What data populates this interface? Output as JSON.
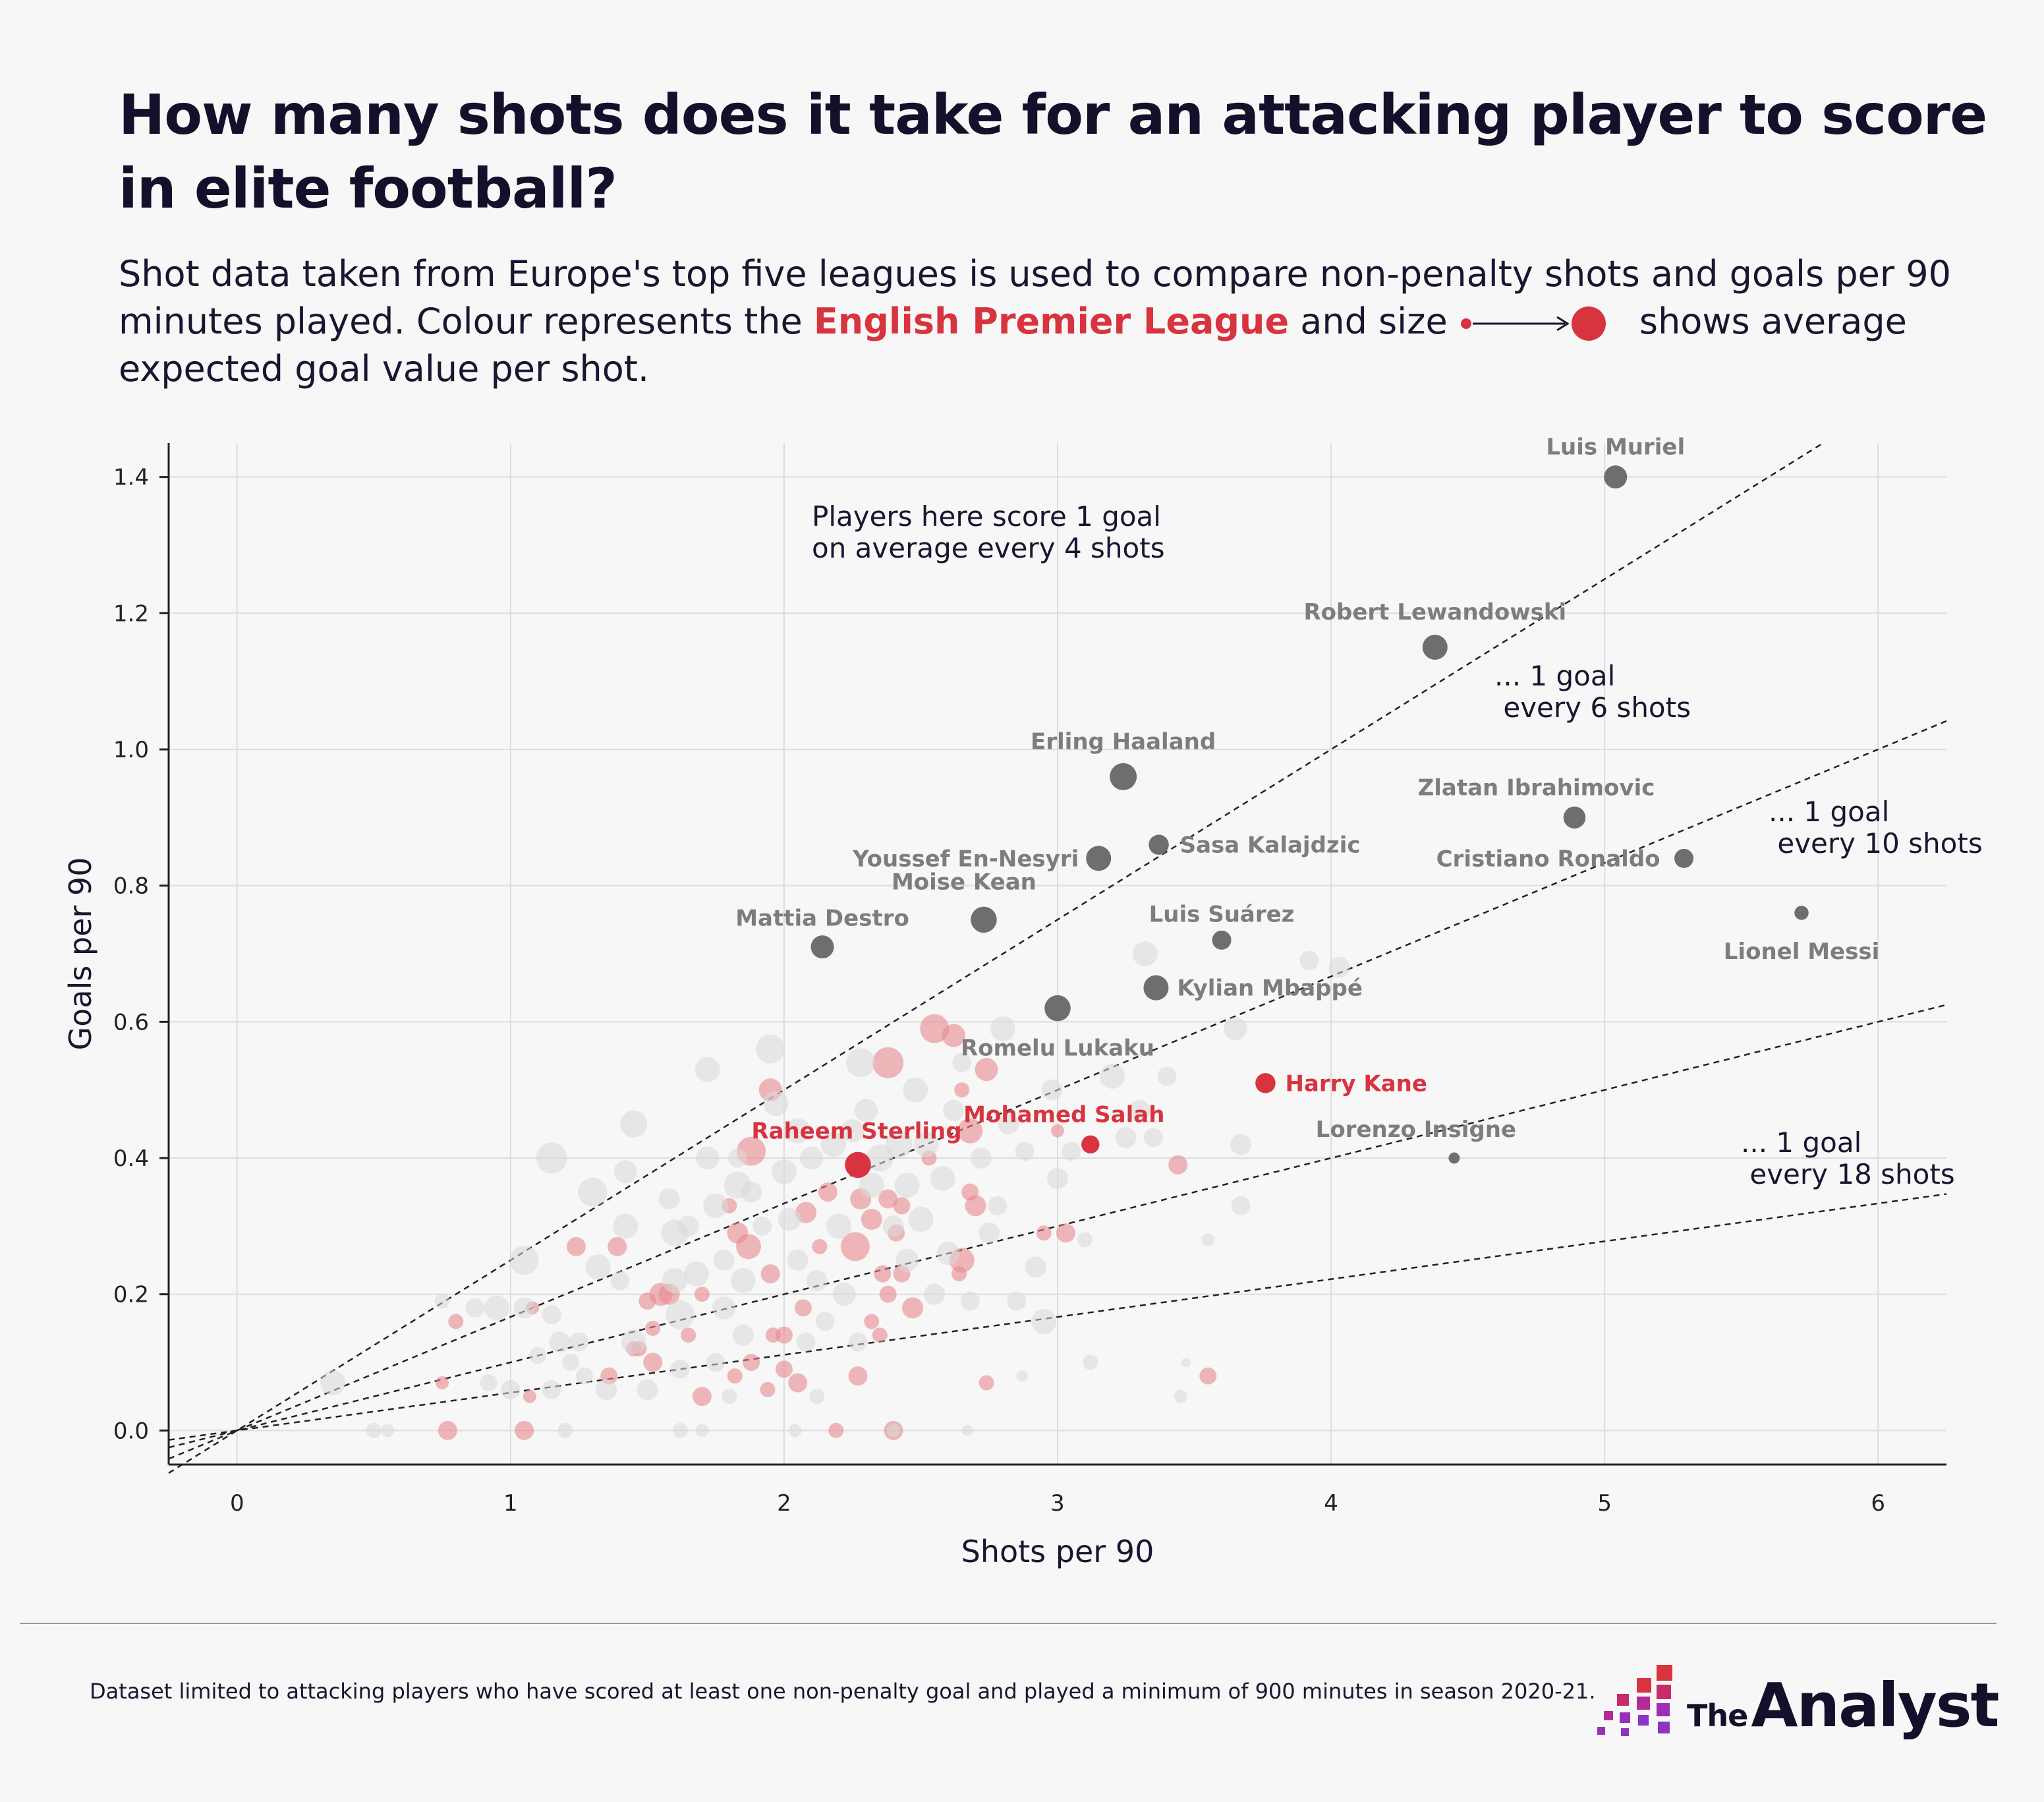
{
  "title": "How many shots does it take for an attacking player to score in elite football?",
  "subtitle": {
    "part1": "Shot data taken from Europe's top five leagues is used to compare non-penalty shots and goals per 90 minutes played. Colour represents the ",
    "highlight": "English Premier League",
    "part2": " and size",
    "part3": " shows average expected goal value per shot."
  },
  "colors": {
    "epl": "#d7343f",
    "epl_light": "#e8898f",
    "highlight_other": "#6e6e6e",
    "background_dots": "#d9d9d9",
    "text": "#1a1530"
  },
  "footnote": "Dataset limited to attacking players who have scored at least one non-penalty goal and played a minimum of 900 minutes in season 2020-21.",
  "logo": {
    "the": "The",
    "analyst": "Analyst"
  },
  "chart_data": {
    "type": "scatter",
    "xlabel": "Shots per 90",
    "ylabel": "Goals per 90",
    "xlim": [
      -0.25,
      6.25
    ],
    "ylim": [
      -0.05,
      1.45
    ],
    "xticks": [
      0,
      1,
      2,
      3,
      4,
      5,
      6
    ],
    "yticks": [
      0.0,
      0.2,
      0.4,
      0.6,
      0.8,
      1.0,
      1.2,
      1.4
    ],
    "xtick_labels": [
      "0",
      "1",
      "2",
      "3",
      "4",
      "5",
      "6"
    ],
    "ytick_labels": [
      "0.0",
      "0.2",
      "0.4",
      "0.6",
      "0.8",
      "1.0",
      "1.2",
      "1.4"
    ],
    "grid": true,
    "reference_lines": [
      {
        "shots_per_goal": 4,
        "label": "Players here score 1 goal\non average every 4 shots"
      },
      {
        "shots_per_goal": 6,
        "label": "... 1 goal\n every 6 shots"
      },
      {
        "shots_per_goal": 10,
        "label": "... 1 goal\n every 10 shots"
      },
      {
        "shots_per_goal": 18,
        "label": "... 1 goal\n every 18 shots"
      }
    ],
    "highlighted_players": [
      {
        "name": "Luis Muriel",
        "x": 5.04,
        "y": 1.4,
        "size": 0.28,
        "league": "other"
      },
      {
        "name": "Robert Lewandowski",
        "x": 4.38,
        "y": 1.15,
        "size": 0.3,
        "league": "other"
      },
      {
        "name": "Erling Haaland",
        "x": 3.24,
        "y": 0.96,
        "size": 0.32,
        "league": "other"
      },
      {
        "name": "Zlatan Ibrahimovic",
        "x": 4.89,
        "y": 0.9,
        "size": 0.27,
        "league": "other"
      },
      {
        "name": "Sasa Kalajdzic",
        "x": 3.37,
        "y": 0.86,
        "size": 0.25,
        "league": "other"
      },
      {
        "name": "Youssef En-Nesyri",
        "x": 3.15,
        "y": 0.84,
        "size": 0.3,
        "league": "other"
      },
      {
        "name": "Cristiano Ronaldo",
        "x": 5.29,
        "y": 0.84,
        "size": 0.24,
        "league": "other"
      },
      {
        "name": "Moise Kean",
        "x": 2.73,
        "y": 0.75,
        "size": 0.31,
        "league": "other"
      },
      {
        "name": "Lionel Messi",
        "x": 5.72,
        "y": 0.76,
        "size": 0.19,
        "league": "other"
      },
      {
        "name": "Luis Suárez",
        "x": 3.6,
        "y": 0.72,
        "size": 0.24,
        "league": "other"
      },
      {
        "name": "Mattia Destro",
        "x": 2.14,
        "y": 0.71,
        "size": 0.28,
        "league": "other"
      },
      {
        "name": "Kylian Mbappé",
        "x": 3.36,
        "y": 0.65,
        "size": 0.3,
        "league": "other"
      },
      {
        "name": "Romelu Lukaku",
        "x": 3.0,
        "y": 0.62,
        "size": 0.31,
        "league": "other"
      },
      {
        "name": "Harry Kane",
        "x": 3.76,
        "y": 0.51,
        "size": 0.25,
        "league": "epl"
      },
      {
        "name": "Mohamed Salah",
        "x": 3.12,
        "y": 0.42,
        "size": 0.23,
        "league": "epl"
      },
      {
        "name": "Raheem Sterling",
        "x": 2.27,
        "y": 0.39,
        "size": 0.31,
        "league": "epl"
      },
      {
        "name": "Lorenzo Insigne",
        "x": 4.45,
        "y": 0.4,
        "size": 0.16,
        "league": "other"
      }
    ],
    "other_players": [
      [
        1.55,
        0.2,
        0.28,
        "epl"
      ],
      [
        1.27,
        0.08,
        0.22,
        "other"
      ],
      [
        1.07,
        0.05,
        0.18,
        "epl"
      ],
      [
        1.05,
        0.0,
        0.24,
        "epl"
      ],
      [
        0.77,
        0.0,
        0.24,
        "epl"
      ],
      [
        0.75,
        0.07,
        0.18,
        "epl"
      ],
      [
        0.8,
        0.16,
        0.2,
        "epl"
      ],
      [
        1.08,
        0.18,
        0.18,
        "epl"
      ],
      [
        1.24,
        0.27,
        0.24,
        "epl"
      ],
      [
        1.39,
        0.27,
        0.24,
        "epl"
      ],
      [
        1.5,
        0.19,
        0.22,
        "epl"
      ],
      [
        1.52,
        0.15,
        0.2,
        "epl"
      ],
      [
        1.47,
        0.12,
        0.2,
        "epl"
      ],
      [
        1.52,
        0.1,
        0.24,
        "epl"
      ],
      [
        1.36,
        0.08,
        0.22,
        "epl"
      ],
      [
        1.7,
        0.05,
        0.24,
        "epl"
      ],
      [
        1.7,
        0.2,
        0.2,
        "epl"
      ],
      [
        1.65,
        0.14,
        0.2,
        "epl"
      ],
      [
        1.82,
        0.08,
        0.2,
        "epl"
      ],
      [
        1.88,
        0.1,
        0.22,
        "epl"
      ],
      [
        1.94,
        0.06,
        0.2,
        "epl"
      ],
      [
        2.0,
        0.09,
        0.22,
        "epl"
      ],
      [
        2.05,
        0.07,
        0.24,
        "epl"
      ],
      [
        2.0,
        0.14,
        0.22,
        "epl"
      ],
      [
        1.95,
        0.23,
        0.24,
        "epl"
      ],
      [
        1.83,
        0.29,
        0.26,
        "epl"
      ],
      [
        1.8,
        0.33,
        0.2,
        "epl"
      ],
      [
        1.87,
        0.27,
        0.3,
        "epl"
      ],
      [
        1.88,
        0.41,
        0.34,
        "epl"
      ],
      [
        1.95,
        0.5,
        0.28,
        "epl"
      ],
      [
        2.07,
        0.18,
        0.22,
        "epl"
      ],
      [
        2.08,
        0.32,
        0.26,
        "epl"
      ],
      [
        2.13,
        0.27,
        0.2,
        "epl"
      ],
      [
        2.16,
        0.35,
        0.24,
        "epl"
      ],
      [
        2.26,
        0.27,
        0.34,
        "epl"
      ],
      [
        2.28,
        0.34,
        0.26,
        "epl"
      ],
      [
        2.32,
        0.31,
        0.26,
        "epl"
      ],
      [
        2.36,
        0.23,
        0.22,
        "epl"
      ],
      [
        2.38,
        0.34,
        0.24,
        "epl"
      ],
      [
        2.43,
        0.33,
        0.22,
        "epl"
      ],
      [
        2.41,
        0.29,
        0.22,
        "epl"
      ],
      [
        2.43,
        0.23,
        0.22,
        "epl"
      ],
      [
        2.38,
        0.2,
        0.22,
        "epl"
      ],
      [
        2.47,
        0.18,
        0.26,
        "epl"
      ],
      [
        2.32,
        0.16,
        0.2,
        "epl"
      ],
      [
        2.35,
        0.14,
        0.2,
        "epl"
      ],
      [
        2.27,
        0.08,
        0.24,
        "epl"
      ],
      [
        2.19,
        0.0,
        0.2,
        "epl"
      ],
      [
        2.4,
        0.0,
        0.24,
        "epl"
      ],
      [
        2.38,
        0.54,
        0.36,
        "epl"
      ],
      [
        2.55,
        0.59,
        0.34,
        "epl"
      ],
      [
        2.62,
        0.58,
        0.28,
        "epl"
      ],
      [
        2.74,
        0.53,
        0.28,
        "epl"
      ],
      [
        2.65,
        0.5,
        0.2,
        "epl"
      ],
      [
        2.68,
        0.44,
        0.3,
        "epl"
      ],
      [
        2.7,
        0.33,
        0.26,
        "epl"
      ],
      [
        2.68,
        0.35,
        0.22,
        "epl"
      ],
      [
        2.65,
        0.25,
        0.3,
        "epl"
      ],
      [
        2.64,
        0.23,
        0.2,
        "epl"
      ],
      [
        2.74,
        0.07,
        0.2,
        "epl"
      ],
      [
        2.95,
        0.29,
        0.2,
        "epl"
      ],
      [
        3.03,
        0.29,
        0.24,
        "epl"
      ],
      [
        3.0,
        0.44,
        0.18,
        "epl"
      ],
      [
        3.44,
        0.39,
        0.24,
        "epl"
      ],
      [
        3.55,
        0.08,
        0.22,
        "epl"
      ],
      [
        1.45,
        0.12,
        0.2,
        "epl"
      ],
      [
        1.58,
        0.2,
        0.26,
        "epl"
      ],
      [
        1.96,
        0.14,
        0.2,
        "epl"
      ],
      [
        2.53,
        0.4,
        0.2,
        "epl"
      ],
      [
        0.35,
        0.07,
        0.3,
        "other"
      ],
      [
        0.5,
        0.0,
        0.2,
        "other"
      ],
      [
        0.75,
        0.19,
        0.2,
        "other"
      ],
      [
        0.87,
        0.18,
        0.24,
        "other"
      ],
      [
        0.95,
        0.18,
        0.3,
        "other"
      ],
      [
        1.05,
        0.25,
        0.34,
        "other"
      ],
      [
        1.05,
        0.18,
        0.26,
        "other"
      ],
      [
        1.0,
        0.06,
        0.24,
        "other"
      ],
      [
        1.15,
        0.4,
        0.36,
        "other"
      ],
      [
        1.15,
        0.17,
        0.24,
        "other"
      ],
      [
        1.18,
        0.13,
        0.26,
        "other"
      ],
      [
        1.15,
        0.06,
        0.24,
        "other"
      ],
      [
        1.3,
        0.35,
        0.34,
        "other"
      ],
      [
        1.32,
        0.24,
        0.3,
        "other"
      ],
      [
        1.25,
        0.13,
        0.24,
        "other"
      ],
      [
        1.35,
        0.06,
        0.26,
        "other"
      ],
      [
        1.42,
        0.38,
        0.28,
        "other"
      ],
      [
        1.45,
        0.45,
        0.32,
        "other"
      ],
      [
        1.42,
        0.3,
        0.3,
        "other"
      ],
      [
        1.4,
        0.22,
        0.24,
        "other"
      ],
      [
        1.45,
        0.13,
        0.3,
        "other"
      ],
      [
        1.5,
        0.06,
        0.26,
        "other"
      ],
      [
        1.58,
        0.34,
        0.26,
        "other"
      ],
      [
        1.6,
        0.29,
        0.32,
        "other"
      ],
      [
        1.6,
        0.22,
        0.3,
        "other"
      ],
      [
        1.62,
        0.17,
        0.34,
        "other"
      ],
      [
        1.62,
        0.09,
        0.24,
        "other"
      ],
      [
        1.65,
        0.3,
        0.26,
        "other"
      ],
      [
        1.68,
        0.23,
        0.3,
        "other"
      ],
      [
        1.72,
        0.53,
        0.3,
        "other"
      ],
      [
        1.72,
        0.4,
        0.28,
        "other"
      ],
      [
        1.75,
        0.33,
        0.3,
        "other"
      ],
      [
        1.78,
        0.25,
        0.26,
        "other"
      ],
      [
        1.78,
        0.18,
        0.28,
        "other"
      ],
      [
        1.75,
        0.1,
        0.24,
        "other"
      ],
      [
        1.83,
        0.4,
        0.24,
        "other"
      ],
      [
        1.83,
        0.36,
        0.32,
        "other"
      ],
      [
        1.85,
        0.22,
        0.3,
        "other"
      ],
      [
        1.85,
        0.14,
        0.26,
        "other"
      ],
      [
        1.88,
        0.35,
        0.26,
        "other"
      ],
      [
        1.92,
        0.3,
        0.24,
        "other"
      ],
      [
        1.95,
        0.56,
        0.34,
        "other"
      ],
      [
        1.97,
        0.48,
        0.3,
        "other"
      ],
      [
        2.0,
        0.38,
        0.3,
        "other"
      ],
      [
        2.02,
        0.31,
        0.28,
        "other"
      ],
      [
        2.05,
        0.44,
        0.3,
        "other"
      ],
      [
        2.05,
        0.25,
        0.26,
        "other"
      ],
      [
        2.08,
        0.13,
        0.24,
        "other"
      ],
      [
        2.1,
        0.4,
        0.28,
        "other"
      ],
      [
        2.12,
        0.22,
        0.26,
        "other"
      ],
      [
        2.15,
        0.16,
        0.24,
        "other"
      ],
      [
        2.18,
        0.42,
        0.3,
        "other"
      ],
      [
        2.2,
        0.3,
        0.3,
        "other"
      ],
      [
        2.22,
        0.2,
        0.28,
        "other"
      ],
      [
        2.25,
        0.44,
        0.28,
        "other"
      ],
      [
        2.27,
        0.13,
        0.24,
        "other"
      ],
      [
        2.28,
        0.54,
        0.34,
        "other"
      ],
      [
        2.3,
        0.47,
        0.28,
        "other"
      ],
      [
        2.32,
        0.36,
        0.3,
        "other"
      ],
      [
        2.35,
        0.4,
        0.32,
        "other"
      ],
      [
        2.4,
        0.3,
        0.26,
        "other"
      ],
      [
        2.42,
        0.42,
        0.32,
        "other"
      ],
      [
        2.45,
        0.36,
        0.3,
        "other"
      ],
      [
        2.45,
        0.25,
        0.28,
        "other"
      ],
      [
        2.48,
        0.5,
        0.3,
        "other"
      ],
      [
        2.5,
        0.31,
        0.3,
        "other"
      ],
      [
        2.52,
        0.42,
        0.3,
        "other"
      ],
      [
        2.55,
        0.2,
        0.26,
        "other"
      ],
      [
        2.58,
        0.37,
        0.3,
        "other"
      ],
      [
        2.6,
        0.26,
        0.28,
        "other"
      ],
      [
        2.62,
        0.47,
        0.26,
        "other"
      ],
      [
        2.65,
        0.54,
        0.24,
        "other"
      ],
      [
        2.68,
        0.19,
        0.24,
        "other"
      ],
      [
        2.72,
        0.4,
        0.26,
        "other"
      ],
      [
        2.75,
        0.29,
        0.26,
        "other"
      ],
      [
        2.78,
        0.33,
        0.24,
        "other"
      ],
      [
        2.8,
        0.59,
        0.3,
        "other"
      ],
      [
        2.82,
        0.45,
        0.26,
        "other"
      ],
      [
        2.85,
        0.19,
        0.24,
        "other"
      ],
      [
        2.88,
        0.41,
        0.24,
        "other"
      ],
      [
        2.92,
        0.24,
        0.26,
        "other"
      ],
      [
        2.95,
        0.16,
        0.3,
        "other"
      ],
      [
        2.98,
        0.5,
        0.26,
        "other"
      ],
      [
        3.0,
        0.37,
        0.26,
        "other"
      ],
      [
        3.05,
        0.41,
        0.24,
        "other"
      ],
      [
        3.1,
        0.28,
        0.2,
        "other"
      ],
      [
        3.12,
        0.1,
        0.2,
        "other"
      ],
      [
        3.2,
        0.52,
        0.3,
        "other"
      ],
      [
        3.25,
        0.43,
        0.26,
        "other"
      ],
      [
        3.3,
        0.47,
        0.26,
        "other"
      ],
      [
        3.32,
        0.7,
        0.3,
        "other"
      ],
      [
        3.35,
        0.43,
        0.24,
        "other"
      ],
      [
        3.4,
        0.52,
        0.24,
        "other"
      ],
      [
        3.45,
        0.05,
        0.18,
        "other"
      ],
      [
        3.55,
        0.28,
        0.18,
        "other"
      ],
      [
        3.65,
        0.59,
        0.28,
        "other"
      ],
      [
        3.67,
        0.42,
        0.26,
        "other"
      ],
      [
        3.67,
        0.33,
        0.24,
        "other"
      ],
      [
        3.92,
        0.69,
        0.24,
        "other"
      ],
      [
        4.03,
        0.68,
        0.26,
        "other"
      ],
      [
        2.4,
        0.0,
        0.18,
        "other"
      ],
      [
        2.04,
        0.0,
        0.18,
        "other"
      ],
      [
        1.7,
        0.0,
        0.18,
        "other"
      ],
      [
        1.62,
        0.0,
        0.2,
        "other"
      ],
      [
        1.2,
        0.0,
        0.2,
        "other"
      ],
      [
        0.55,
        0.0,
        0.18,
        "other"
      ],
      [
        2.67,
        0.0,
        0.16,
        "other"
      ],
      [
        1.1,
        0.11,
        0.22,
        "other"
      ],
      [
        1.22,
        0.1,
        0.22,
        "other"
      ],
      [
        0.92,
        0.07,
        0.22,
        "other"
      ],
      [
        2.87,
        0.08,
        0.16,
        "other"
      ],
      [
        2.12,
        0.05,
        0.2,
        "other"
      ],
      [
        1.8,
        0.05,
        0.2,
        "other"
      ],
      [
        3.47,
        0.1,
        0.14,
        "other"
      ]
    ]
  }
}
